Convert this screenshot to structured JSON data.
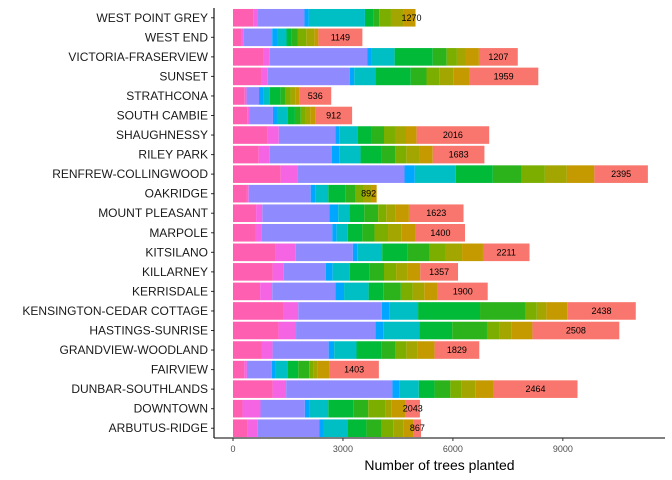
{
  "chart_data": {
    "type": "bar",
    "orientation": "horizontal",
    "stacked": true,
    "title": "",
    "xlabel": "Number of trees planted",
    "ylabel": "",
    "xlim": [
      0,
      11700
    ],
    "xticks": [
      0,
      3000,
      6000,
      9000
    ],
    "xtick_labels": [
      "0",
      "3000",
      "6000",
      "9000"
    ],
    "grid": false,
    "legend": "none",
    "categories": [
      "WEST POINT GREY",
      "WEST END",
      "VICTORIA-FRASERVIEW",
      "SUNSET",
      "STRATHCONA",
      "SOUTH CAMBIE",
      "SHAUGHNESSY",
      "RILEY PARK",
      "RENFREW-COLLINGWOOD",
      "OAKRIDGE",
      "MOUNT PLEASANT",
      "MARPOLE",
      "KITSILANO",
      "KILLARNEY",
      "KERRISDALE",
      "KENSINGTON-CEDAR COTTAGE",
      "HASTINGS-SUNRISE",
      "GRANDVIEW-WOODLAND",
      "FAIRVIEW",
      "DUNBAR-SOUTHLANDS",
      "DOWNTOWN",
      "ARBUTUS-RIDGE"
    ],
    "totals": [
      4870,
      3530,
      7770,
      8330,
      2680,
      3250,
      6990,
      6860,
      11320,
      3700,
      6290,
      6330,
      8090,
      6140,
      6950,
      10990,
      10540,
      6720,
      3980,
      9400,
      5100,
      5130
    ],
    "labels": [
      1270,
      1149,
      1207,
      1959,
      536,
      912,
      2016,
      1683,
      2395,
      892,
      1623,
      1400,
      2211,
      1357,
      1900,
      2438,
      2508,
      1829,
      1403,
      2464,
      2043,
      867
    ],
    "segment_colors": [
      "#F8766D",
      "#DE8C00",
      "#B79F00",
      "#7CAE00",
      "#00BA38",
      "#00C08B",
      "#00BFC4",
      "#00B4F0",
      "#619CFF",
      "#C77CFF",
      "#F564E3",
      "#FF64B0"
    ],
    "segments": [
      [
        550,
        120,
        0,
        0,
        0,
        0,
        0,
        0,
        1280,
        0,
        120,
        1530,
        230,
        160,
        320,
        330,
        340,
        0,
        1270
      ],
      [
        230,
        60,
        0,
        0,
        0,
        0,
        0,
        0,
        780,
        0,
        130,
        260,
        140,
        160,
        240,
        220,
        110,
        0,
        1149
      ],
      [
        830,
        160,
        0,
        0,
        0,
        0,
        0,
        0,
        2680,
        0,
        120,
        620,
        1040,
        380,
        280,
        220,
        380,
        0,
        1207
      ],
      [
        780,
        170,
        0,
        0,
        0,
        0,
        0,
        0,
        2240,
        0,
        120,
        580,
        960,
        430,
        350,
        380,
        430,
        0,
        1959
      ],
      [
        320,
        50,
        0,
        0,
        0,
        0,
        0,
        0,
        340,
        0,
        110,
        180,
        300,
        130,
        140,
        130,
        110,
        0,
        536
      ],
      [
        390,
        60,
        0,
        0,
        0,
        0,
        0,
        0,
        640,
        0,
        110,
        290,
        200,
        160,
        130,
        130,
        130,
        0,
        912
      ],
      [
        950,
        300,
        0,
        0,
        0,
        0,
        0,
        0,
        1540,
        0,
        110,
        500,
        380,
        340,
        300,
        300,
        290,
        0,
        2016
      ],
      [
        700,
        300,
        0,
        0,
        0,
        0,
        0,
        0,
        1700,
        0,
        200,
        580,
        570,
        380,
        300,
        360,
        360,
        0,
        1683
      ],
      [
        1300,
        450,
        0,
        0,
        0,
        0,
        0,
        0,
        2930,
        0,
        280,
        1120,
        1010,
        780,
        640,
        600,
        750,
        0,
        2395
      ],
      [
        380,
        50,
        0,
        0,
        0,
        0,
        0,
        0,
        1690,
        0,
        120,
        360,
        460,
        280,
        220,
        220,
        140,
        0,
        892
      ],
      [
        630,
        170,
        0,
        0,
        0,
        0,
        0,
        0,
        1830,
        0,
        240,
        300,
        410,
        380,
        220,
        250,
        370,
        0,
        1623
      ],
      [
        600,
        180,
        0,
        0,
        0,
        0,
        0,
        0,
        1930,
        0,
        120,
        300,
        400,
        330,
        370,
        360,
        400,
        0,
        1400
      ],
      [
        1170,
        540,
        0,
        0,
        0,
        0,
        0,
        0,
        1560,
        0,
        120,
        680,
        700,
        590,
        450,
        440,
        570,
        0,
        2211
      ],
      [
        1080,
        290,
        0,
        0,
        0,
        0,
        0,
        0,
        1160,
        0,
        190,
        470,
        530,
        400,
        330,
        300,
        360,
        0,
        1357
      ],
      [
        740,
        330,
        0,
        0,
        0,
        0,
        0,
        0,
        1720,
        0,
        240,
        670,
        400,
        480,
        320,
        320,
        370,
        0,
        1900
      ],
      [
        1380,
        400,
        0,
        0,
        0,
        0,
        0,
        0,
        2280,
        0,
        200,
        790,
        1690,
        1250,
        300,
        260,
        570,
        0,
        2438
      ],
      [
        1240,
        480,
        0,
        0,
        0,
        0,
        0,
        0,
        2170,
        0,
        210,
        990,
        890,
        950,
        330,
        330,
        580,
        0,
        2508
      ],
      [
        790,
        290,
        0,
        0,
        0,
        0,
        0,
        0,
        1530,
        0,
        150,
        610,
        690,
        380,
        290,
        300,
        470,
        0,
        1829
      ],
      [
        310,
        70,
        0,
        0,
        0,
        0,
        0,
        0,
        680,
        0,
        110,
        330,
        280,
        300,
        120,
        110,
        320,
        0,
        1403
      ],
      [
        1080,
        370,
        0,
        0,
        0,
        0,
        0,
        0,
        2900,
        0,
        200,
        520,
        430,
        430,
        310,
        370,
        500,
        0,
        2464
      ],
      [
        260,
        490,
        0,
        0,
        0,
        0,
        0,
        0,
        1210,
        0,
        130,
        510,
        680,
        410,
        460,
        170,
        390,
        0,
        2043
      ],
      [
        400,
        260,
        0,
        0,
        0,
        0,
        0,
        0,
        1690,
        0,
        120,
        650,
        520,
        410,
        320,
        290,
        270,
        0,
        867
      ]
    ]
  }
}
